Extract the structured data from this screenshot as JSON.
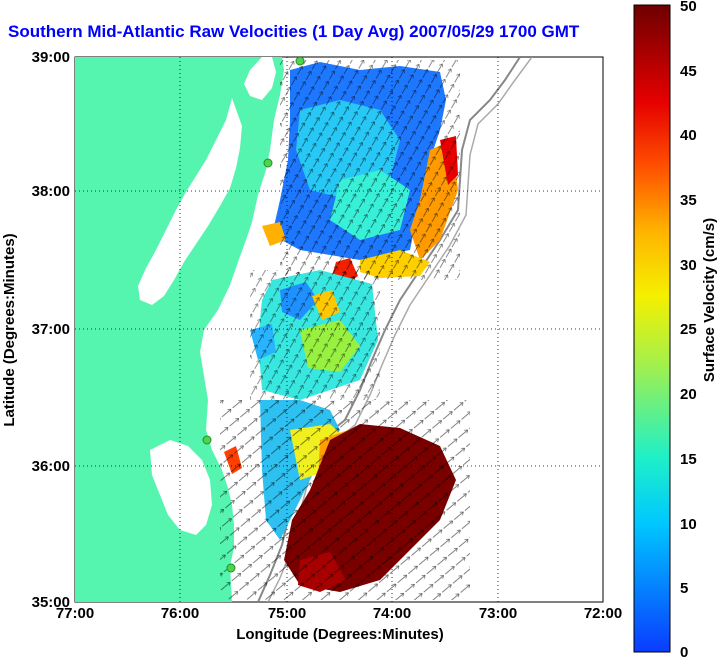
{
  "map": {
    "title": "Southern Mid-Atlantic Raw Velocities (1 Day Avg) 2007/05/29 1700 GMT",
    "xlabel": "Longitude (Degrees:Minutes)",
    "ylabel": "Latitude (Degrees:Minutes)",
    "xticks": [
      "77:00",
      "76:00",
      "75:00",
      "74:00",
      "73:00",
      "72:00"
    ],
    "yticks": [
      "39:00",
      "38:00",
      "37:00",
      "36:00",
      "35:00"
    ],
    "land_color": "#55f5b0",
    "colorbar": {
      "label": "Surface Velocity (cm/s)",
      "ticks": [
        "50",
        "45",
        "40",
        "35",
        "30",
        "25",
        "20",
        "15",
        "10",
        "5",
        "0"
      ],
      "min": 0,
      "max": 50
    }
  }
}
